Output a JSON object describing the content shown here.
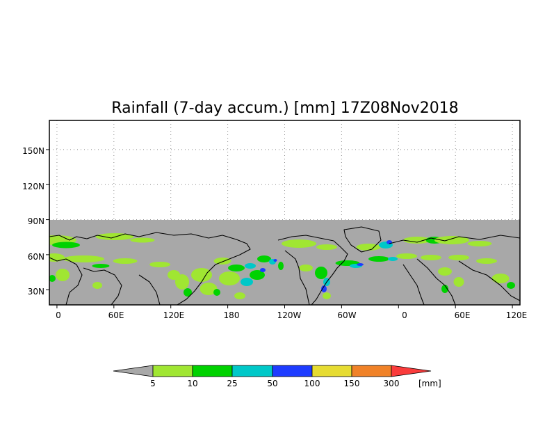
{
  "title": "Rainfall (7-day accum.) [mm] 17Z08Nov2018",
  "map": {
    "y_ticks": [
      "150N",
      "120N",
      "90N",
      "60N",
      "30N"
    ],
    "y_tick_values": [
      150,
      120,
      90,
      60,
      30
    ],
    "x_ticks": [
      "0",
      "60E",
      "120E",
      "180",
      "120W",
      "60W",
      "0",
      "60E",
      "120E"
    ],
    "x_tick_values": [
      0,
      60,
      120,
      180,
      240,
      300,
      360,
      420,
      480
    ],
    "lon_range": [
      -8,
      488
    ],
    "lat_range": [
      17,
      175
    ],
    "data_lat_max": 90,
    "no_data_color": "#ffffff",
    "land_dry_color": "#a8a8a8",
    "gridlines": "dotted",
    "coastlines": true,
    "country_borders": true
  },
  "colorbar": {
    "unit_label": "[mm]",
    "thresholds": [
      "5",
      "10",
      "25",
      "50",
      "100",
      "150",
      "300"
    ],
    "colors": [
      "#a8a8a8",
      "#a0e632",
      "#00d200",
      "#00c8c8",
      "#1e3cff",
      "#e6dc32",
      "#f08228",
      "#fa3c3c"
    ],
    "ends": "triangular"
  }
}
